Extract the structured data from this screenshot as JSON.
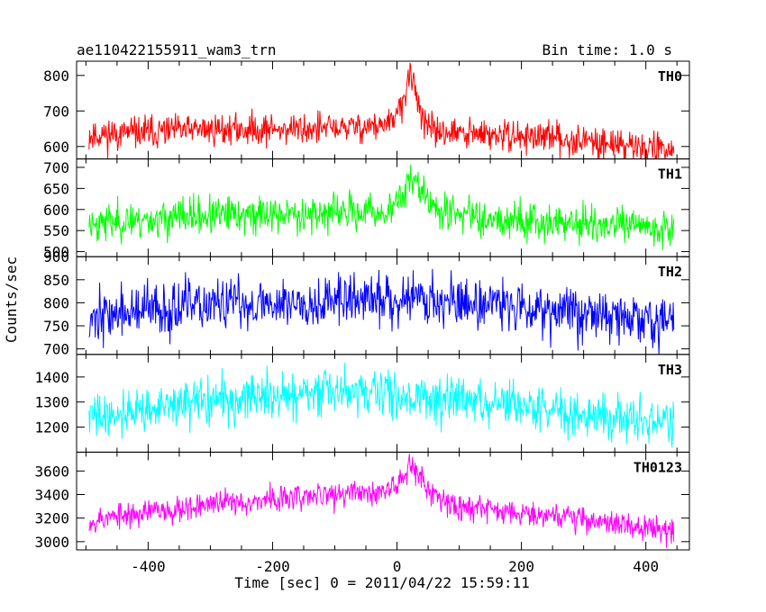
{
  "header": {
    "title": "ae110422155911_wam3_trn",
    "bin_label": "Bin time: 1.0 s"
  },
  "chart_data": {
    "type": "line",
    "title": "ae110422155911_wam3_trn",
    "xlabel": "Time [sec] 0 = 2011/04/22 15:59:11",
    "ylabel": "Counts/sec",
    "xlim": [
      -515,
      470
    ],
    "x_ticks": [
      -400,
      -200,
      0,
      200,
      400
    ],
    "x_range_data": [
      -495,
      445
    ],
    "bin_time_s": 1.0,
    "grid": false,
    "legend": "none",
    "panels": [
      {
        "name": "TH0",
        "color": "#ff0000",
        "ylim": [
          565,
          840
        ],
        "yticks": [
          600,
          700,
          800
        ],
        "profile": [
          [
            -495,
            632
          ],
          [
            -300,
            648
          ],
          [
            -120,
            650
          ],
          [
            -10,
            660
          ],
          [
            12,
            740
          ],
          [
            22,
            800
          ],
          [
            34,
            735
          ],
          [
            45,
            650
          ],
          [
            100,
            635
          ],
          [
            250,
            625
          ],
          [
            445,
            590
          ]
        ],
        "noise": 22,
        "seed": 11
      },
      {
        "name": "TH1",
        "color": "#00ff00",
        "ylim": [
          488,
          720
        ],
        "yticks": [
          500,
          550,
          600,
          650,
          700
        ],
        "profile": [
          [
            -495,
            568
          ],
          [
            -300,
            585
          ],
          [
            -150,
            590
          ],
          [
            -10,
            595
          ],
          [
            10,
            640
          ],
          [
            25,
            685
          ],
          [
            40,
            640
          ],
          [
            60,
            600
          ],
          [
            150,
            580
          ],
          [
            300,
            565
          ],
          [
            445,
            555
          ]
        ],
        "noise": 22,
        "seed": 23
      },
      {
        "name": "TH2",
        "color": "#0000ff",
        "ylim": [
          688,
          900
        ],
        "yticks": [
          700,
          750,
          800,
          850,
          900
        ],
        "profile": [
          [
            -495,
            770
          ],
          [
            -300,
            795
          ],
          [
            -100,
            805
          ],
          [
            0,
            808
          ],
          [
            25,
            820
          ],
          [
            50,
            805
          ],
          [
            200,
            795
          ],
          [
            350,
            770
          ],
          [
            445,
            755
          ]
        ],
        "noise": 28,
        "seed": 37
      },
      {
        "name": "TH3",
        "color": "#00ffff",
        "ylim": [
          1100,
          1490
        ],
        "yticks": [
          1200,
          1300,
          1400
        ],
        "profile": [
          [
            -495,
            1240
          ],
          [
            -300,
            1305
          ],
          [
            -100,
            1340
          ],
          [
            0,
            1330
          ],
          [
            200,
            1280
          ],
          [
            350,
            1240
          ],
          [
            445,
            1210
          ]
        ],
        "noise": 45,
        "seed": 41
      },
      {
        "name": "TH0123",
        "color": "#ff00ff",
        "ylim": [
          2930,
          3760
        ],
        "yticks": [
          3000,
          3200,
          3400,
          3600
        ],
        "profile": [
          [
            -495,
            3180
          ],
          [
            -300,
            3320
          ],
          [
            -100,
            3400
          ],
          [
            -10,
            3430
          ],
          [
            12,
            3580
          ],
          [
            22,
            3690
          ],
          [
            35,
            3560
          ],
          [
            55,
            3420
          ],
          [
            100,
            3300
          ],
          [
            250,
            3230
          ],
          [
            445,
            3080
          ]
        ],
        "noise": 55,
        "seed": 53
      }
    ]
  }
}
